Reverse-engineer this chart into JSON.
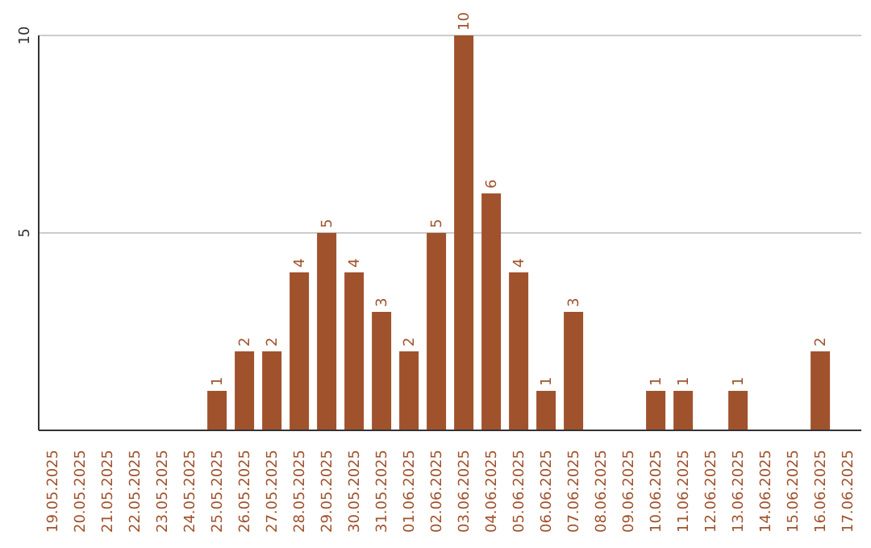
{
  "chart_data": {
    "type": "bar",
    "categories": [
      "19.05.2025",
      "20.05.2025",
      "21.05.2025",
      "22.05.2025",
      "23.05.2025",
      "24.05.2025",
      "25.05.2025",
      "26.05.2025",
      "27.05.2025",
      "28.05.2025",
      "29.05.2025",
      "30.05.2025",
      "31.05.2025",
      "01.06.2025",
      "02.06.2025",
      "03.06.2025",
      "04.06.2025",
      "05.06.2025",
      "06.06.2025",
      "07.06.2025",
      "08.06.2025",
      "09.06.2025",
      "10.06.2025",
      "11.06.2025",
      "12.06.2025",
      "13.06.2025",
      "14.06.2025",
      "15.06.2025",
      "16.06.2025",
      "17.06.2025"
    ],
    "values": [
      0,
      0,
      0,
      0,
      0,
      0,
      1,
      2,
      2,
      4,
      5,
      4,
      3,
      2,
      5,
      10,
      6,
      4,
      1,
      3,
      0,
      0,
      1,
      1,
      0,
      1,
      0,
      0,
      2,
      0
    ],
    "value_labels": [
      null,
      null,
      null,
      null,
      null,
      null,
      "1",
      "2",
      "2",
      "4",
      "5",
      "4",
      "3",
      "2",
      "5",
      "10",
      "6",
      "4",
      "1",
      "3",
      null,
      null,
      "1",
      "1",
      null,
      "1",
      null,
      null,
      "2",
      null
    ],
    "color": "#a0522d",
    "ylim": [
      0,
      10
    ],
    "yticks": [
      {
        "value": 0,
        "label": null
      },
      5,
      10
    ],
    "grid": "y"
  }
}
